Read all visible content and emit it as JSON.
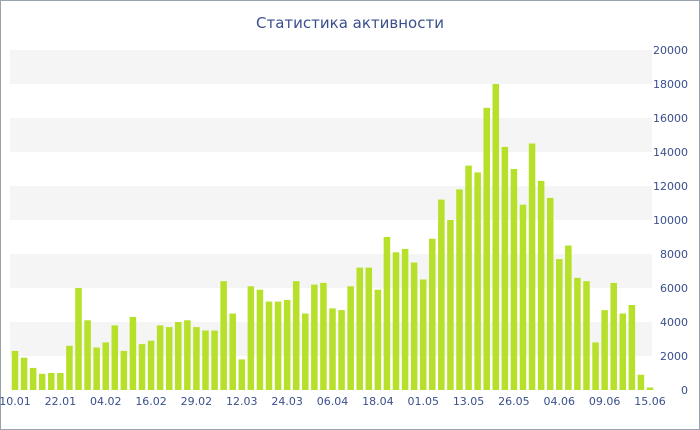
{
  "chart_data": {
    "type": "bar",
    "title": "Статистика активности",
    "xlabel": "",
    "ylabel": "",
    "ylim": [
      0,
      20000
    ],
    "y_ticks": [
      0,
      2000,
      4000,
      6000,
      8000,
      10000,
      12000,
      14000,
      16000,
      18000,
      20000
    ],
    "y_axis_side": "right",
    "x_ticks": [
      "10.01",
      "22.01",
      "04.02",
      "16.02",
      "29.02",
      "12.03",
      "24.03",
      "06.04",
      "18.04",
      "01.05",
      "13.05",
      "26.05",
      "04.06",
      "09.06",
      "15.06"
    ],
    "x_tick_bar_index": [
      0,
      5,
      10,
      15,
      20,
      25,
      30,
      35,
      40,
      45,
      50,
      55,
      60,
      65,
      70
    ],
    "grid": "alternating horizontal bands",
    "colors": {
      "bar": "#b7e02a",
      "band": "#f5f5f5",
      "text": "#3a4f8c"
    },
    "values": [
      2300,
      1900,
      1300,
      950,
      1000,
      1000,
      2600,
      6000,
      4100,
      2500,
      2800,
      3800,
      2300,
      4300,
      2700,
      2900,
      3800,
      3700,
      4000,
      4100,
      3700,
      3500,
      3500,
      6400,
      4500,
      1800,
      6100,
      5900,
      5200,
      5200,
      5300,
      6400,
      4500,
      6200,
      6300,
      4800,
      4700,
      6100,
      7200,
      7200,
      5900,
      9000,
      8100,
      8300,
      7500,
      6500,
      8900,
      11200,
      10000,
      11800,
      13200,
      12800,
      16600,
      18000,
      14300,
      13000,
      10900,
      14500,
      12300,
      11300,
      7700,
      8500,
      6600,
      6400,
      2800,
      4700,
      6300,
      4500,
      5000,
      900,
      150
    ]
  }
}
